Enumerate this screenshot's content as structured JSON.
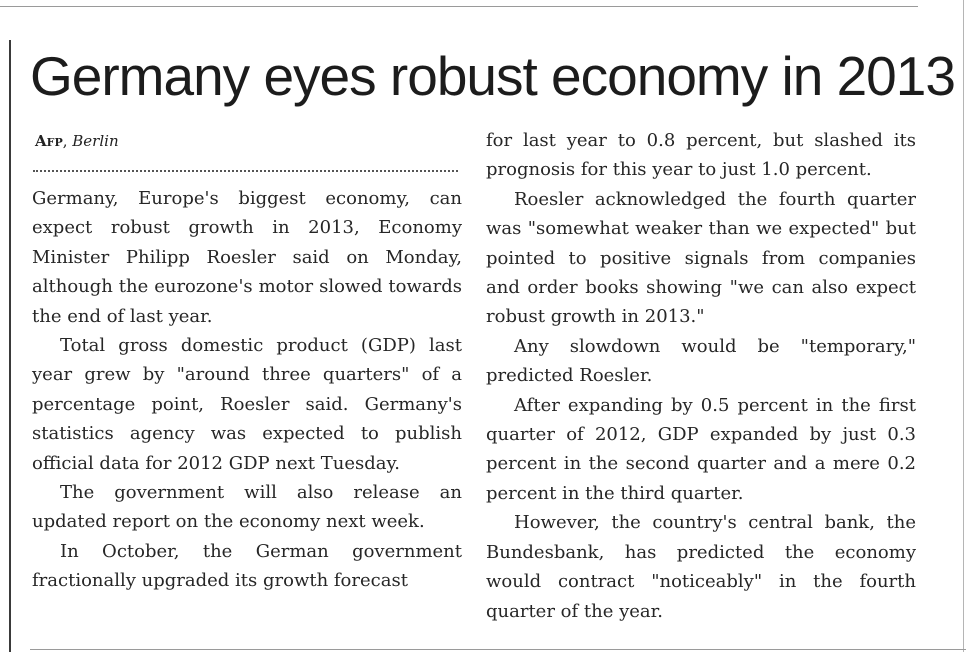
{
  "article": {
    "headline": "Germany eyes robust economy in 2013",
    "byline": {
      "agency": "Afp",
      "location": "Berlin"
    },
    "left_column": [
      "Germany, Europe's biggest economy, can expect robust growth in 2013, Economy Minister Philipp Roesler said on Monday, although the eurozone's motor slowed towards the end of last year.",
      "Total gross domestic product (GDP) last year grew by \"around three quarters\" of a percentage point, Roesler said. Germany's statistics agency was expected to publish official data for 2012 GDP next Tuesday.",
      "The government will also release an updated report on the economy next week.",
      "In October, the German government fractionally upgraded its growth forecast"
    ],
    "right_column": [
      "for last year to 0.8 percent, but slashed its prognosis for this year to just 1.0 percent.",
      "Roesler acknowledged the fourth quarter was \"somewhat weaker than we expected\" but pointed to positive signals from companies and order books showing \"we can also expect robust growth in 2013.\"",
      "Any slowdown would be \"temporary,\" predicted Roesler.",
      "After expanding by 0.5 percent in the first quarter of 2012, GDP expanded by just 0.3 percent in the second quarter and a mere 0.2 percent in the third quarter.",
      "However, the country's central bank, the Bundesbank, has predicted the economy would contract \"noticeably\" in the fourth quarter of the year."
    ]
  }
}
